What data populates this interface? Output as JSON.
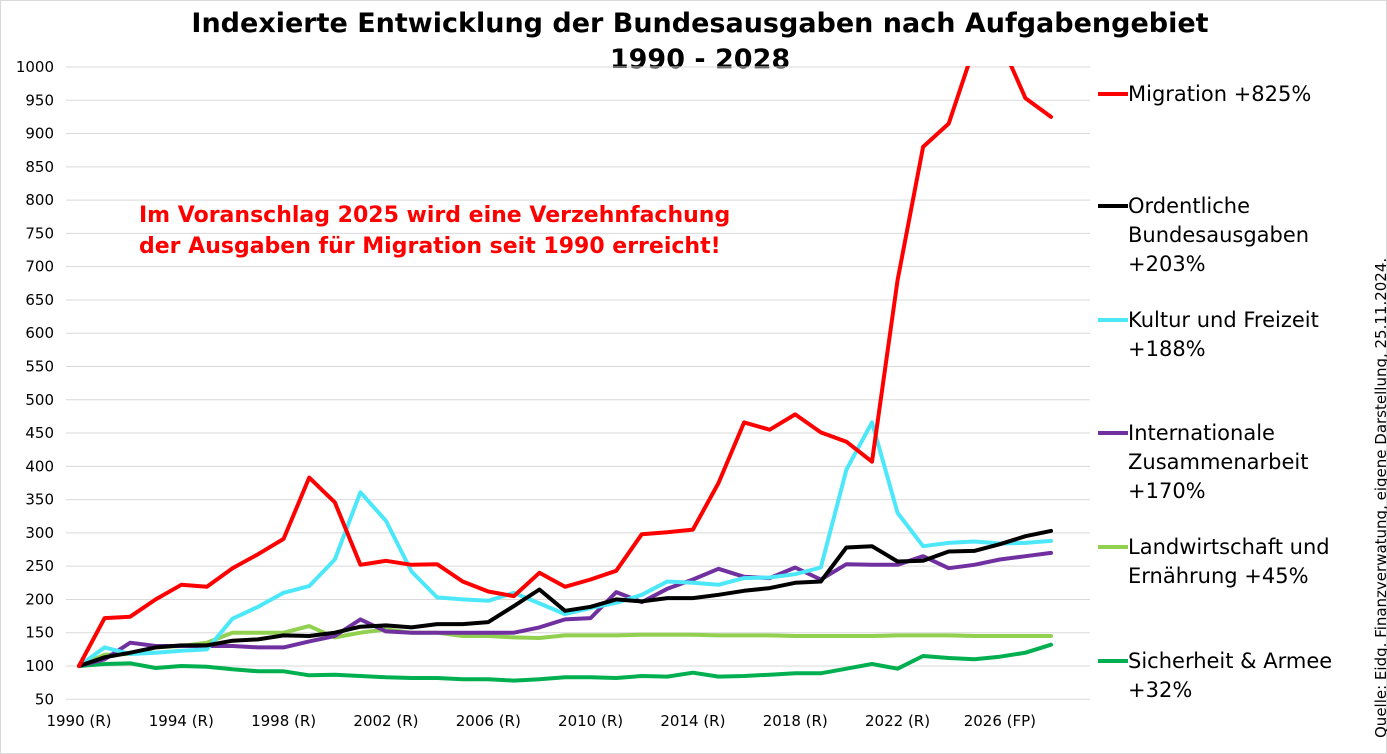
{
  "chart_data": {
    "type": "line",
    "title": "Indexierte Entwicklung der Bundesausgaben nach Aufgabengebiet",
    "subtitle": "1990 - 2028",
    "annotation": [
      "Im Voranschlag 2025 wird eine Verzehnfachung",
      "der Ausgaben für Migration seit 1990 erreicht!"
    ],
    "xlabel": "",
    "ylabel": "",
    "ylim": [
      50,
      1000
    ],
    "yticks": [
      50,
      100,
      150,
      200,
      250,
      300,
      350,
      400,
      450,
      500,
      550,
      600,
      650,
      700,
      750,
      800,
      850,
      900,
      950,
      1000
    ],
    "x": [
      1990,
      1991,
      1992,
      1993,
      1994,
      1995,
      1996,
      1997,
      1998,
      1999,
      2000,
      2001,
      2002,
      2003,
      2004,
      2005,
      2006,
      2007,
      2008,
      2009,
      2010,
      2011,
      2012,
      2013,
      2014,
      2015,
      2016,
      2017,
      2018,
      2019,
      2020,
      2021,
      2022,
      2023,
      2024,
      2025,
      2026,
      2027,
      2028
    ],
    "xtick_labels": [
      {
        "x": 1990,
        "label": "1990 (R)"
      },
      {
        "x": 1994,
        "label": "1994 (R)"
      },
      {
        "x": 1998,
        "label": "1998 (R)"
      },
      {
        "x": 2002,
        "label": "2002 (R)"
      },
      {
        "x": 2006,
        "label": "2006 (R)"
      },
      {
        "x": 2010,
        "label": "2010 (R)"
      },
      {
        "x": 2014,
        "label": "2014 (R)"
      },
      {
        "x": 2018,
        "label": "2018 (R)"
      },
      {
        "x": 2022,
        "label": "2022 (R)"
      },
      {
        "x": 2026,
        "label": "2026 (FP)"
      }
    ],
    "grid": true,
    "legend_position": "right",
    "series": [
      {
        "name": "Migration",
        "legend_label": "Migration +825%",
        "color": "#ff0000",
        "values": [
          100,
          172,
          174,
          200,
          222,
          219,
          247,
          268,
          291,
          383,
          346,
          252,
          258,
          252,
          253,
          227,
          212,
          205,
          240,
          219,
          230,
          243,
          298,
          301,
          305,
          375,
          466,
          455,
          478,
          451,
          437,
          407,
          680,
          880,
          915,
          1030,
          1040,
          953,
          925
        ],
        "estimated_points": {
          "years": [
            2025,
            2026
          ],
          "reason": "Line exceeds the 1000 y-axis maximum and is clipped; values not readable from the chart. Approximated from the '+825%' legend and the 'Verzehnfachung' annotation."
        }
      },
      {
        "name": "Ordentliche Bundesausgaben",
        "legend_label": "Ordentliche Bundesausgaben +203%",
        "color": "#000000",
        "values": [
          100,
          113,
          120,
          128,
          131,
          131,
          138,
          140,
          146,
          145,
          150,
          159,
          161,
          158,
          163,
          163,
          166,
          190,
          215,
          183,
          189,
          200,
          197,
          202,
          202,
          207,
          213,
          217,
          225,
          227,
          278,
          280,
          257,
          258,
          272,
          273,
          283,
          295,
          303
        ]
      },
      {
        "name": "Kultur und Freizeit",
        "legend_label": "Kultur und Freizeit +188%",
        "color": "#4ce8fa",
        "values": [
          100,
          128,
          118,
          120,
          123,
          125,
          171,
          189,
          210,
          220,
          260,
          361,
          318,
          242,
          203,
          200,
          198,
          210,
          194,
          178,
          187,
          195,
          207,
          227,
          225,
          222,
          232,
          233,
          238,
          248,
          395,
          466,
          330,
          280,
          285,
          287,
          284,
          285,
          288
        ]
      },
      {
        "name": "Internationale Zusammenarbeit",
        "legend_label": "Internationale Zusammenarbeit +170%",
        "color": "#7030a0",
        "values": [
          100,
          110,
          135,
          130,
          130,
          130,
          130,
          128,
          128,
          137,
          145,
          170,
          152,
          150,
          150,
          150,
          150,
          150,
          158,
          170,
          172,
          211,
          196,
          216,
          230,
          246,
          234,
          232,
          248,
          230,
          253,
          252,
          252,
          265,
          247,
          252,
          260,
          265,
          270
        ]
      },
      {
        "name": "Landwirtschaft und Ernährung",
        "legend_label": "Landwirtschaft und Ernährung +45%",
        "color": "#92d050",
        "values": [
          100,
          117,
          118,
          128,
          130,
          135,
          150,
          150,
          150,
          160,
          143,
          150,
          155,
          150,
          150,
          145,
          145,
          143,
          142,
          146,
          146,
          146,
          147,
          147,
          147,
          146,
          146,
          146,
          145,
          145,
          145,
          145,
          146,
          146,
          146,
          145,
          145,
          145,
          145
        ]
      },
      {
        "name": "Sicherheit & Armee",
        "legend_label": "Sicherheit & Armee +32%",
        "color": "#00b050",
        "values": [
          100,
          103,
          104,
          97,
          100,
          99,
          95,
          92,
          92,
          86,
          87,
          85,
          83,
          82,
          82,
          80,
          80,
          78,
          80,
          83,
          83,
          82,
          85,
          84,
          90,
          84,
          85,
          87,
          89,
          89,
          96,
          103,
          96,
          115,
          112,
          110,
          114,
          120,
          132
        ]
      }
    ],
    "source_note": "Quelle: Eidg. Finanzverwatung, eigene Darstellung, 25.11.2024."
  }
}
